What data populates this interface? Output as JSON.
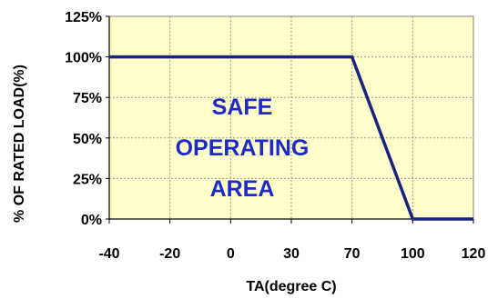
{
  "chart_data": {
    "type": "line",
    "xlabel": "TA(degree C)",
    "ylabel": "% OF RATED LOAD(%)",
    "x_categories": [
      "-40",
      "-20",
      "0",
      "30",
      "70",
      "100",
      "120"
    ],
    "y_tick_labels": [
      "0%",
      "25%",
      "50%",
      "75%",
      "100%",
      "125%"
    ],
    "ylim": [
      0,
      125
    ],
    "grid": true,
    "series": [
      {
        "points": [
          {
            "x": "-40",
            "y": 100
          },
          {
            "x": "70",
            "y": 100
          },
          {
            "x": "100",
            "y": 0
          },
          {
            "x": "120",
            "y": 0
          }
        ]
      }
    ],
    "annotation": [
      "SAFE",
      "OPERATING",
      "AREA"
    ],
    "colors": {
      "plot_background": "#ffffcc",
      "line": "#1a237e",
      "annotation": "#1f29c8",
      "grid": "#999999"
    }
  }
}
